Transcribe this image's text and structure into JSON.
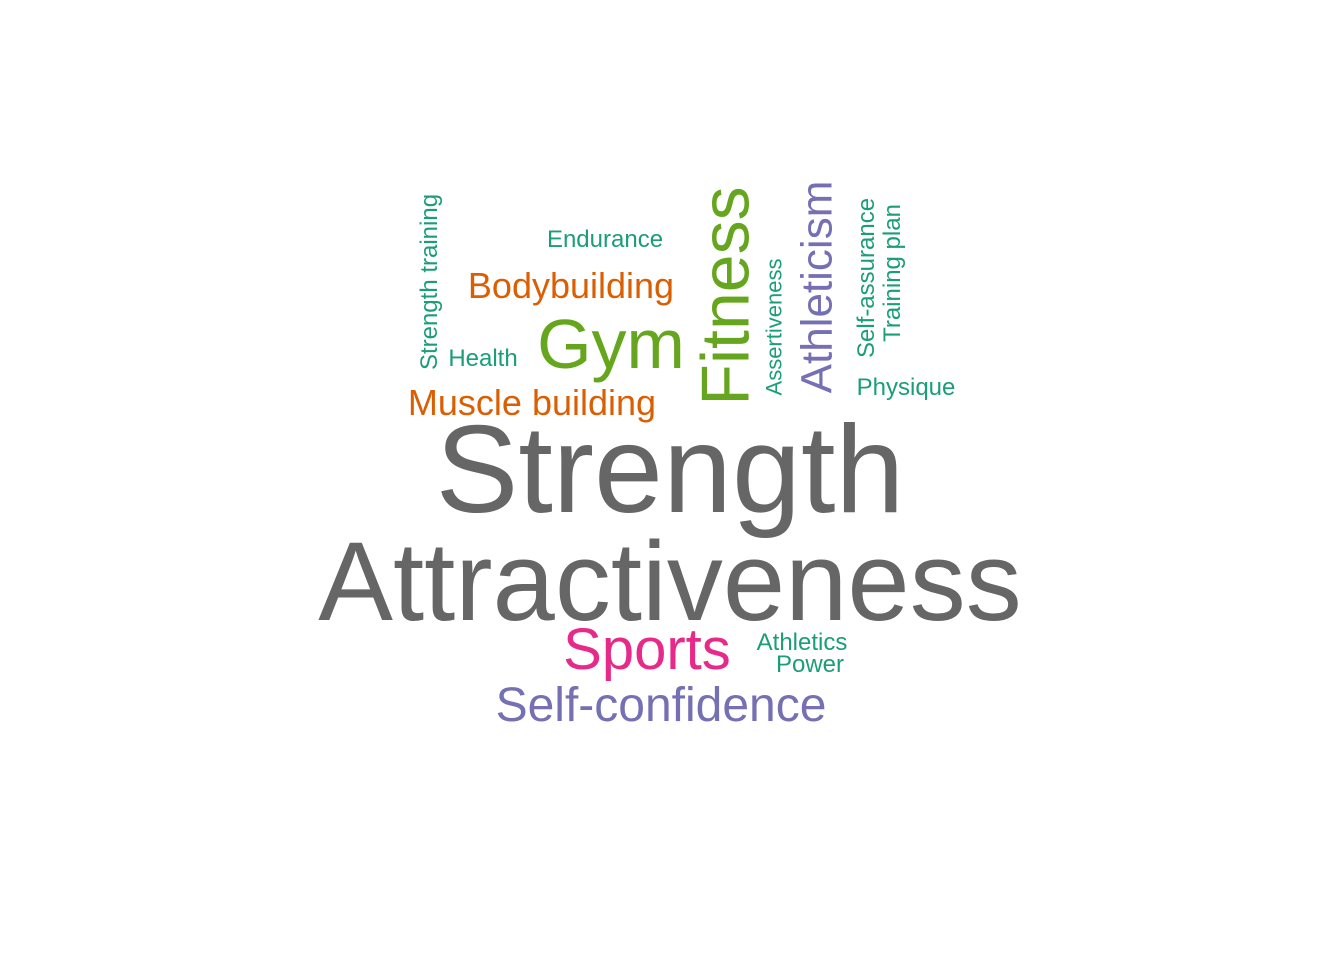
{
  "palette": {
    "gray": "#666666",
    "teal": "#1b9e77",
    "orange": "#d95f02",
    "purple": "#7570b3",
    "pink": "#e7298a",
    "green": "#66a61e"
  },
  "words": [
    {
      "key": "strength",
      "text": "Strength",
      "color": "gray",
      "vertical": false
    },
    {
      "key": "attractiveness",
      "text": "Attractiveness",
      "color": "gray",
      "vertical": false
    },
    {
      "key": "fitness",
      "text": "Fitness",
      "color": "green",
      "vertical": true
    },
    {
      "key": "gym",
      "text": "Gym",
      "color": "green",
      "vertical": false
    },
    {
      "key": "sports",
      "text": "Sports",
      "color": "pink",
      "vertical": false
    },
    {
      "key": "athleticism",
      "text": "Athleticism",
      "color": "purple",
      "vertical": true
    },
    {
      "key": "self-confidence",
      "text": "Self-confidence",
      "color": "purple",
      "vertical": false
    },
    {
      "key": "bodybuilding",
      "text": "Bodybuilding",
      "color": "orange",
      "vertical": false
    },
    {
      "key": "muscle-building",
      "text": "Muscle building",
      "color": "orange",
      "vertical": false
    },
    {
      "key": "endurance",
      "text": "Endurance",
      "color": "teal",
      "vertical": false
    },
    {
      "key": "health",
      "text": "Health",
      "color": "teal",
      "vertical": false
    },
    {
      "key": "strength-training",
      "text": "Strength training",
      "color": "teal",
      "vertical": true
    },
    {
      "key": "assertiveness",
      "text": "Assertiveness",
      "color": "teal",
      "vertical": true
    },
    {
      "key": "self-assurance",
      "text": "Self-assurance",
      "color": "teal",
      "vertical": true
    },
    {
      "key": "training-plan",
      "text": "Training plan",
      "color": "teal",
      "vertical": true
    },
    {
      "key": "physique",
      "text": "Physique",
      "color": "teal",
      "vertical": false
    },
    {
      "key": "athletics",
      "text": "Athletics",
      "color": "teal",
      "vertical": false
    },
    {
      "key": "power",
      "text": "Power",
      "color": "teal",
      "vertical": false
    }
  ]
}
